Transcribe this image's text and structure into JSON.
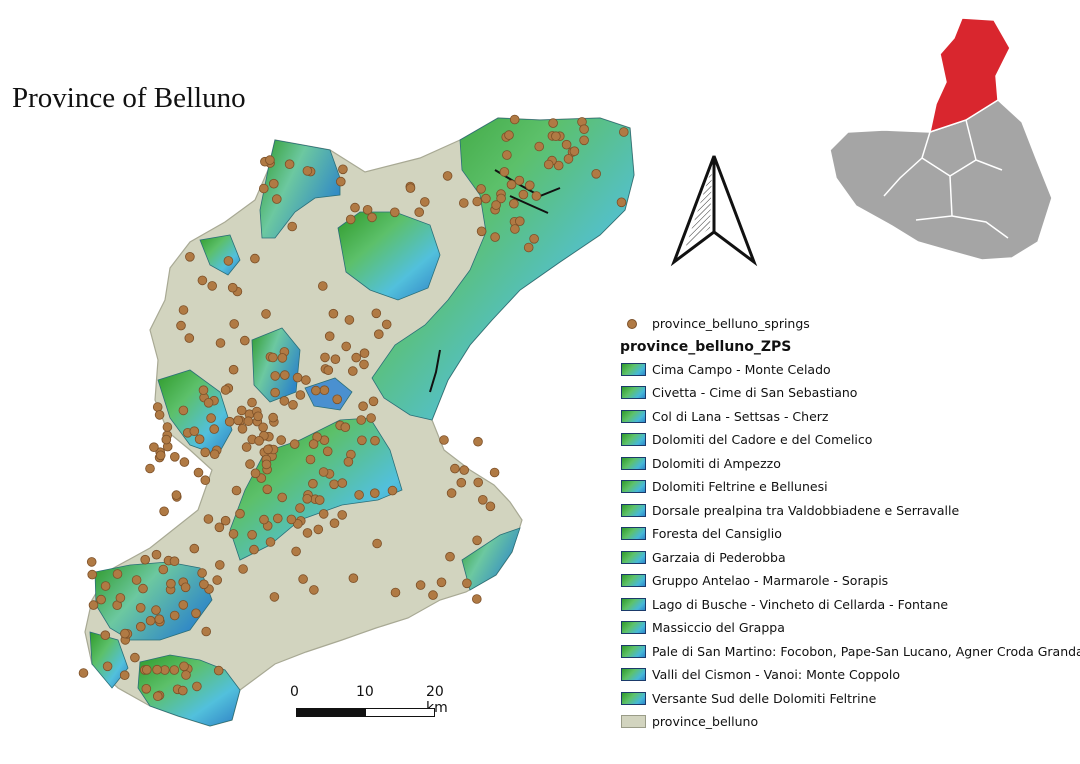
{
  "title": "Province of Belluno",
  "scalebar": {
    "labels": [
      "0",
      "10",
      "20 km"
    ]
  },
  "legend": {
    "springs_label": "province_belluno_springs",
    "zps_header": "province_belluno_ZPS",
    "zps_items": [
      "Cima Campo - Monte Celado",
      "Civetta - Cime di San Sebastiano",
      "Col di Lana - Settsas - Cherz",
      "Dolomiti del  Cadore e del Comelico",
      "Dolomiti di Ampezzo",
      "Dolomiti Feltrine e Bellunesi",
      "Dorsale prealpina tra Valdobbiadene e Serravalle",
      "Foresta del Cansiglio",
      "Garzaia di Pederobba",
      "Gruppo Antelao - Marmarole - Sorapis",
      "Lago di Busche - Vincheto di Cellarda - Fontane",
      "Massiccio del Grappa",
      "Pale di San Martino: Focobon, Pape-San Lucano, Agner Croda Granda",
      "Valli del Cismon - Vanoi: Monte Coppolo",
      "Versante Sud delle Dolomiti Feltrine"
    ],
    "province_label": "province_belluno"
  },
  "colors": {
    "province_fill": "#d2d4bf",
    "spring": "#b07a44",
    "zps_green": "#2f9a2a",
    "zps_blue": "#2e86c8",
    "locator_highlight": "#d9262e",
    "locator_grey": "#a5a5a5"
  },
  "icons": [
    "north-arrow-icon",
    "locator-map",
    "scale-bar"
  ]
}
